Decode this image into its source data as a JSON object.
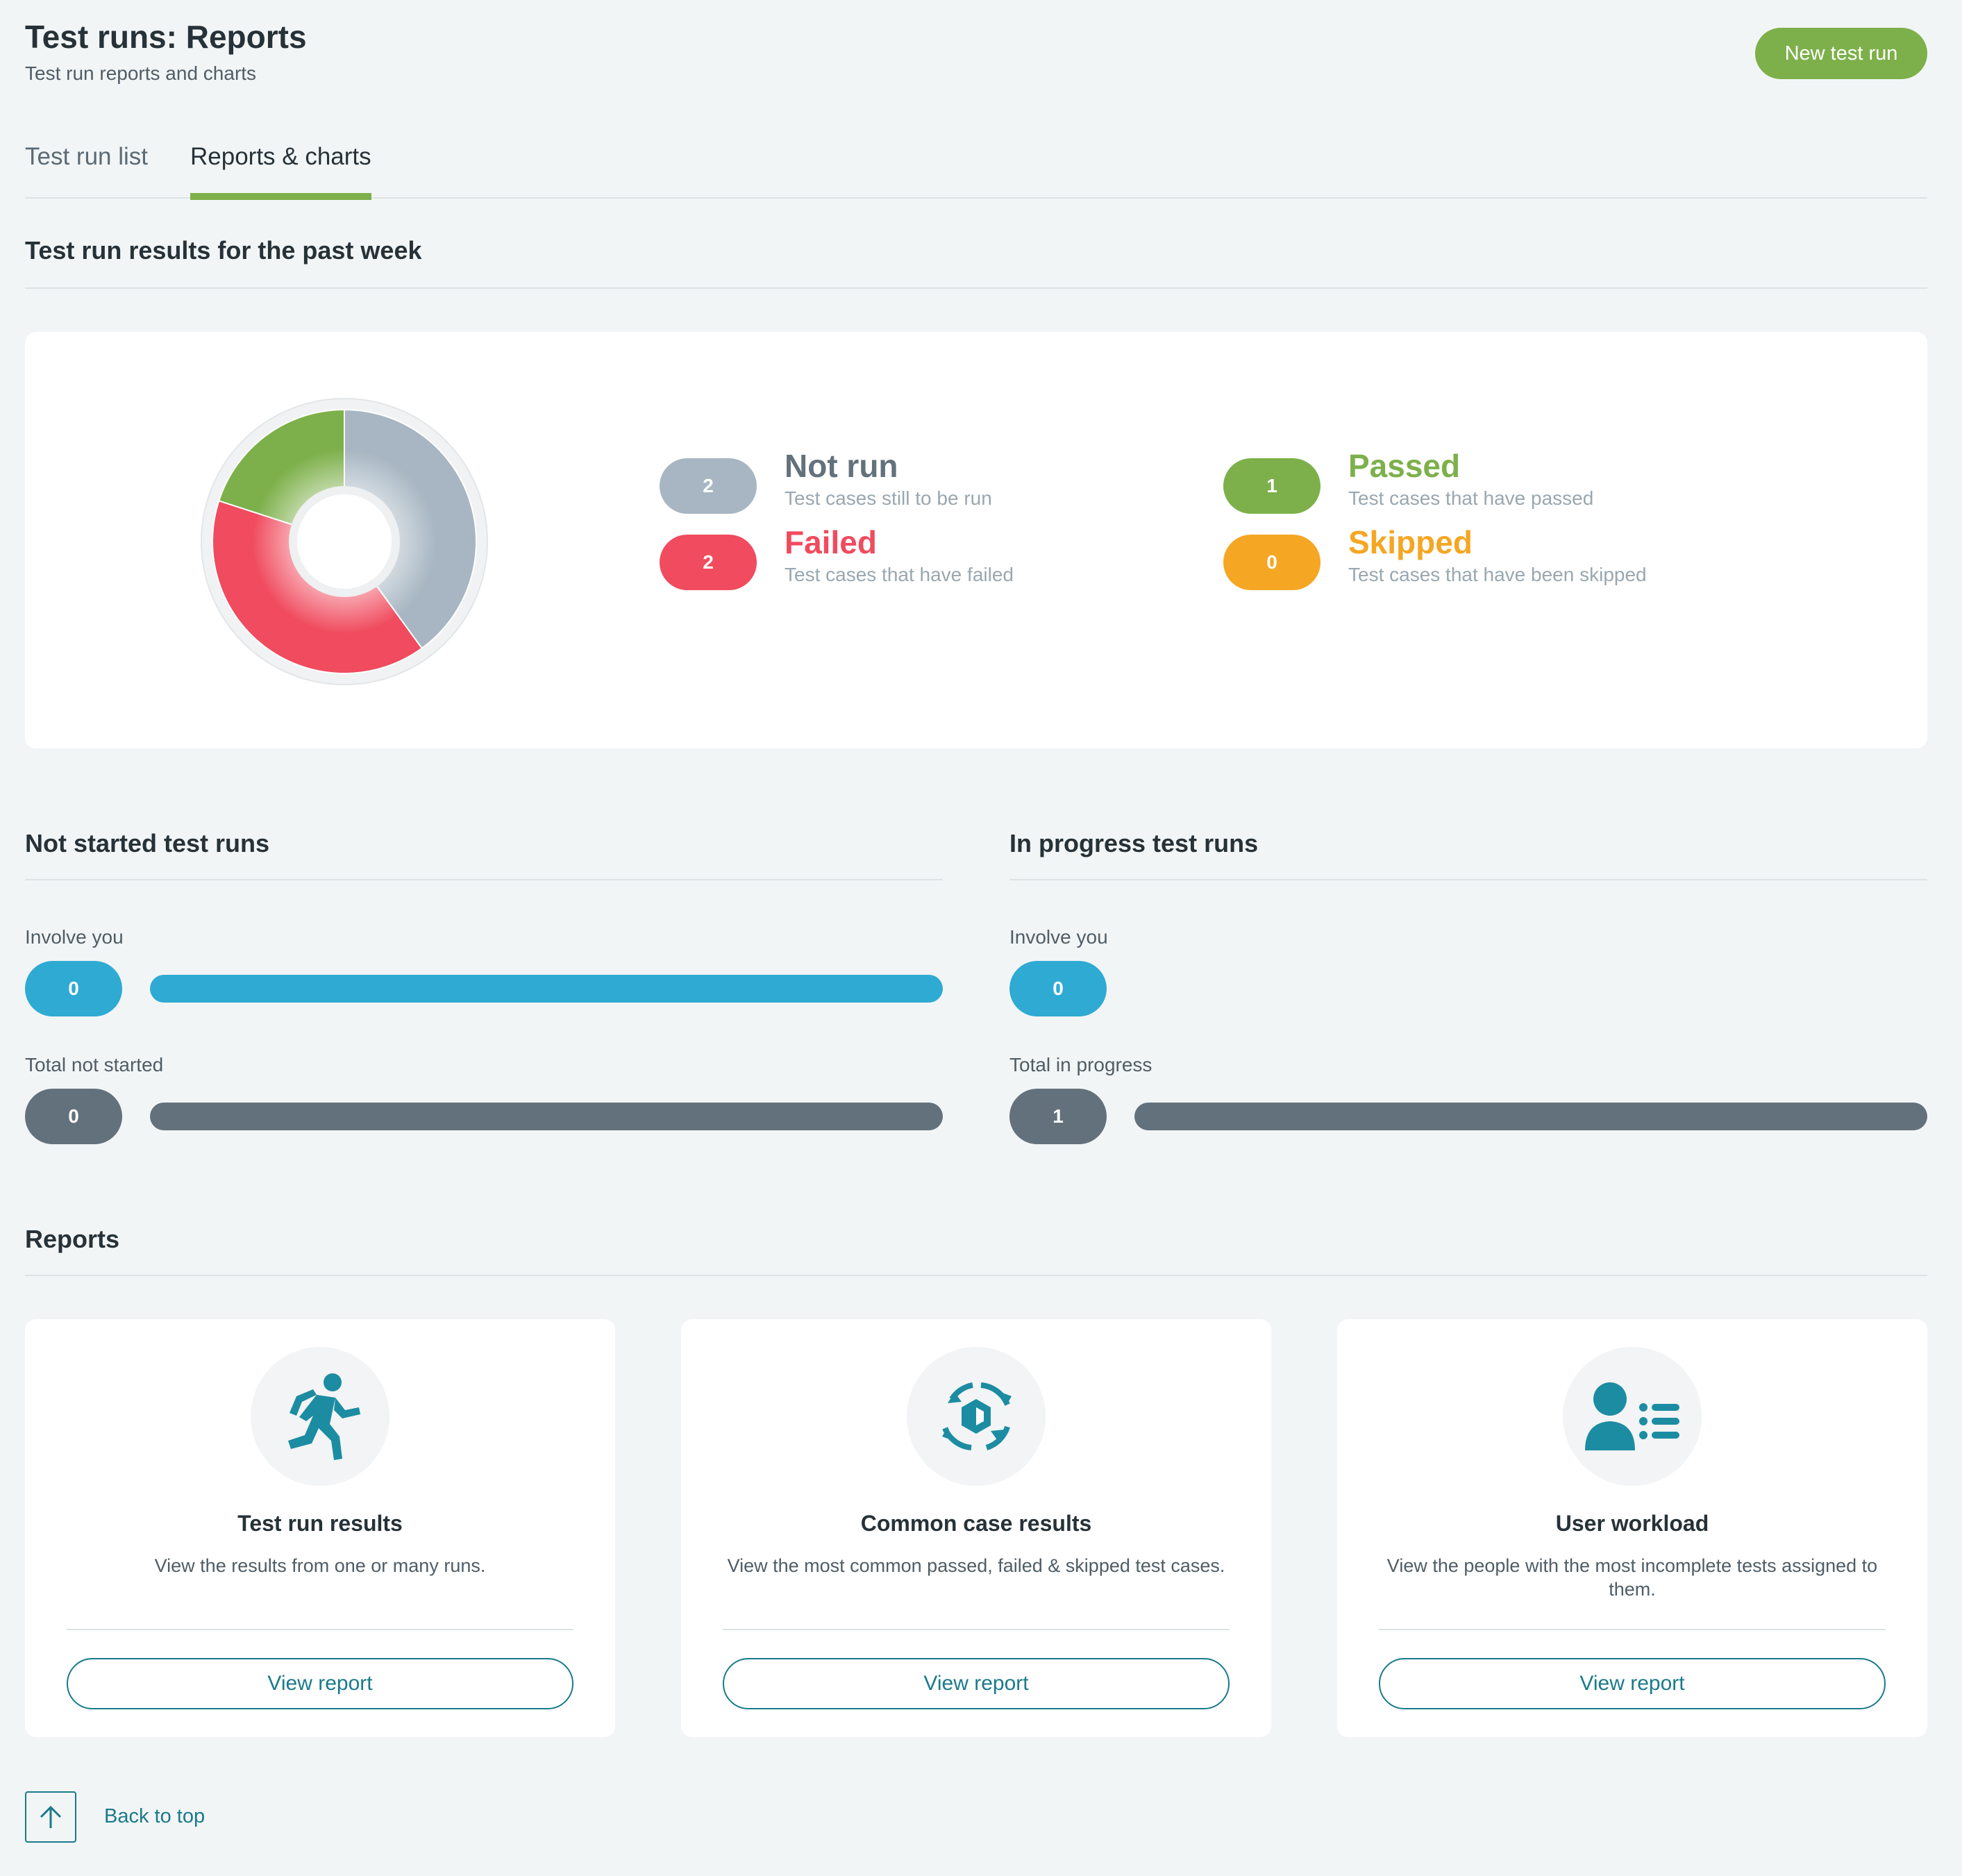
{
  "header": {
    "title": "Test runs: Reports",
    "subtitle": "Test run reports and charts",
    "new_button": "New test run"
  },
  "tabs": [
    {
      "label": "Test run list",
      "active": false
    },
    {
      "label": "Reports & charts",
      "active": true
    }
  ],
  "results_section": {
    "title": "Test run results for the past week",
    "legend": [
      {
        "key": "not_run",
        "count": "2",
        "label": "Not run",
        "description": "Test cases still to be run",
        "color": "#a7b6c2"
      },
      {
        "key": "failed",
        "count": "2",
        "label": "Failed",
        "description": "Test cases that have failed",
        "color": "#f04b5e"
      },
      {
        "key": "passed",
        "count": "1",
        "label": "Passed",
        "description": "Test cases that have passed",
        "color": "#7db04a"
      },
      {
        "key": "skipped",
        "count": "0",
        "label": "Skipped",
        "description": "Test cases that have been skipped",
        "color": "#f5a623"
      }
    ]
  },
  "chart_data": {
    "type": "pie",
    "categories": [
      "Not run",
      "Failed",
      "Passed",
      "Skipped"
    ],
    "values": [
      2,
      2,
      1,
      0
    ],
    "colors": [
      "#a7b6c2",
      "#f04b5e",
      "#7db04a",
      "#f5a623"
    ],
    "donut": true
  },
  "not_started": {
    "title": "Not started test runs",
    "involve_label": "Involve you",
    "involve_count": "0",
    "involve_fraction": 1.0,
    "total_label": "Total not started",
    "total_count": "0",
    "total_fraction": 1.0
  },
  "in_progress": {
    "title": "In progress test runs",
    "involve_label": "Involve you",
    "involve_count": "0",
    "involve_fraction": 0,
    "total_label": "Total in progress",
    "total_count": "1",
    "total_fraction": 1.0
  },
  "colors": {
    "accent_green": "#7db04a",
    "involve_blue": "#2eaad3",
    "total_slate": "#63717c",
    "link_teal": "#1a7a8a",
    "icon_teal": "#1c8ca2"
  },
  "reports": {
    "title": "Reports",
    "cards": [
      {
        "icon": "running-person-icon",
        "title": "Test run results",
        "description": "View the results from one or many runs.",
        "button": "View report"
      },
      {
        "icon": "cycle-arrows-icon",
        "title": "Common case results",
        "description": "View the most common passed, failed & skipped test cases.",
        "button": "View report"
      },
      {
        "icon": "user-list-icon",
        "title": "User workload",
        "description": "View the people with the most incomplete tests assigned to them.",
        "button": "View report"
      }
    ]
  },
  "footer": {
    "back_to_top": "Back to top"
  }
}
